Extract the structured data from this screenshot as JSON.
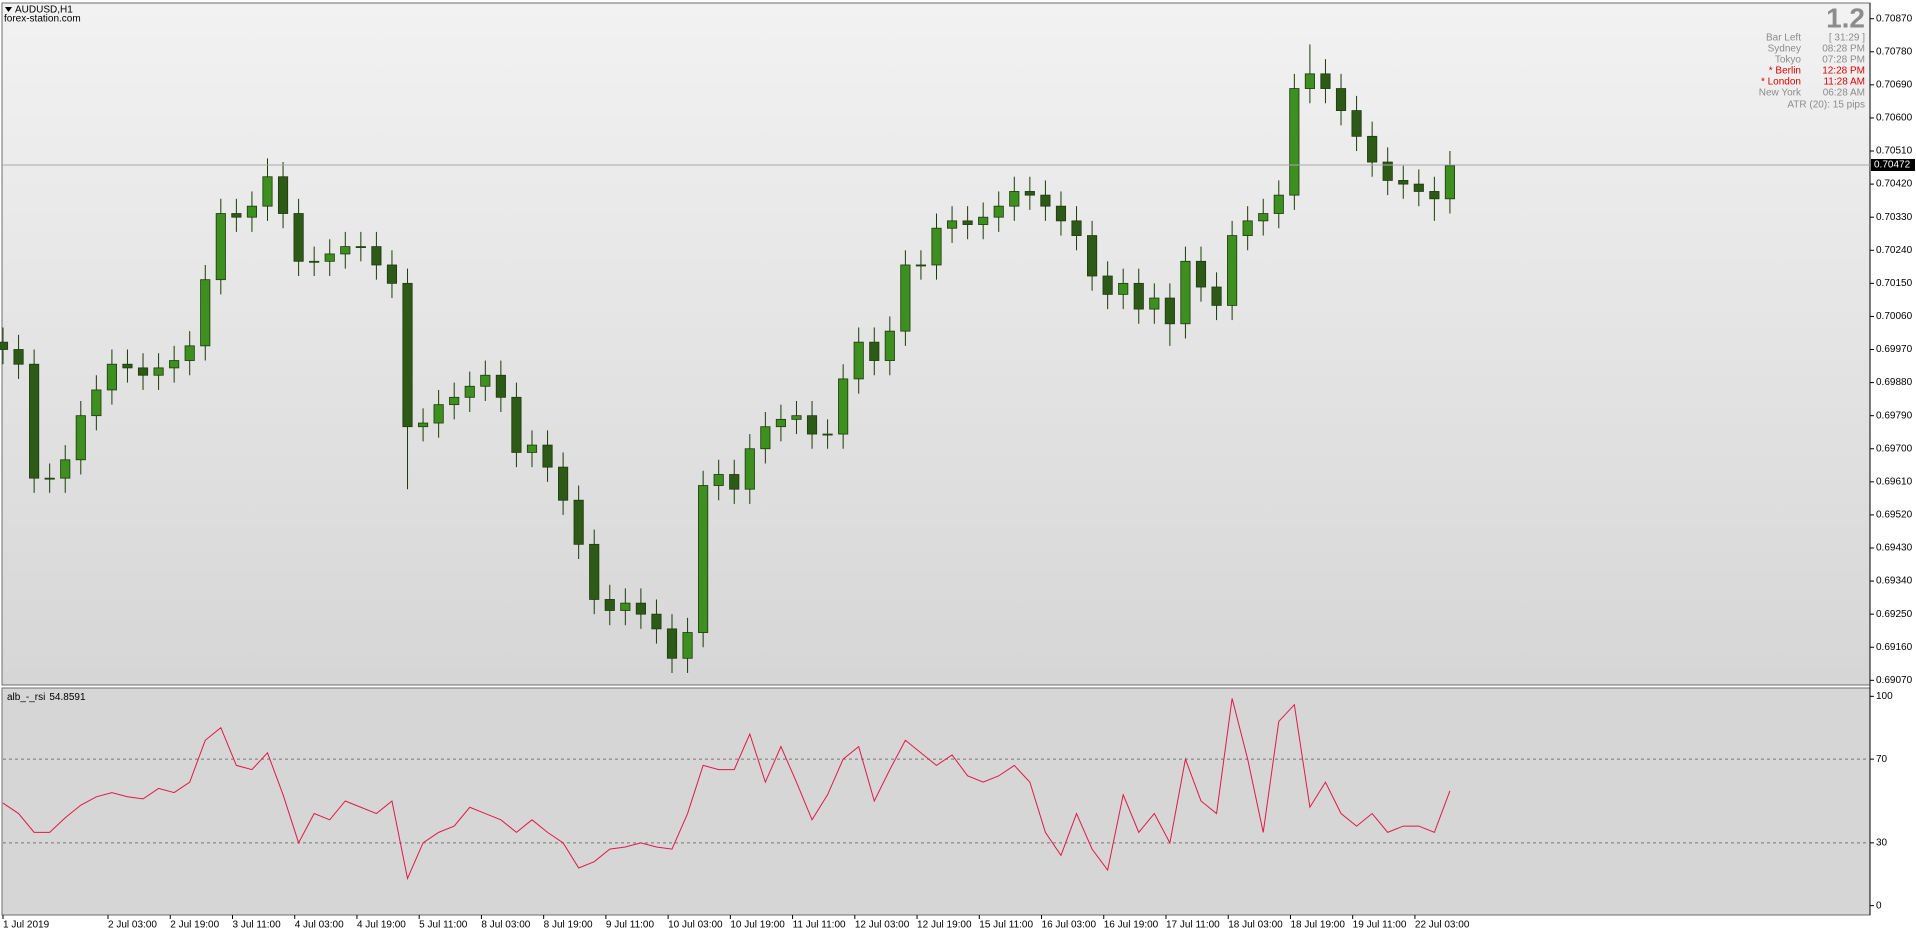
{
  "header": {
    "symbol": "AUDUSD,H1",
    "source": "forex-station.com"
  },
  "info_panel": {
    "big": "1.2",
    "rows": [
      {
        "label": "Bar Left",
        "value": "[ 31:29 ]",
        "color": "#8c8c8c"
      },
      {
        "label": "Sydney",
        "value": "08:28 PM",
        "color": "#8c8c8c"
      },
      {
        "label": "Tokyo",
        "value": "07:28 PM",
        "color": "#8c8c8c"
      },
      {
        "label": "* Berlin",
        "value": "12:28 PM",
        "color": "#e00000"
      },
      {
        "label": "* London",
        "value": "11:28 AM",
        "color": "#e00000"
      },
      {
        "label": "New York",
        "value": "06:28 AM",
        "color": "#8c8c8c"
      }
    ],
    "atr": "ATR (20): 15 pips"
  },
  "chart_data": [
    {
      "type": "candlestick",
      "up_color": "#3d8f1f",
      "down_color": "#2e5a17",
      "outline_color": "#1d3a0c",
      "current_price": 0.70472,
      "xlim": [
        0,
        480
      ],
      "ylim": [
        0.6906,
        0.7091
      ],
      "yticks": [
        {
          "value": 0.7087,
          "label": "0.70870"
        },
        {
          "value": 0.7078,
          "label": "0.70780"
        },
        {
          "value": 0.7069,
          "label": "0.70690"
        },
        {
          "value": 0.706,
          "label": "0.70600"
        },
        {
          "value": 0.7051,
          "label": "0.70510"
        },
        {
          "value": 0.7042,
          "label": "0.70420"
        },
        {
          "value": 0.7033,
          "label": "0.70330"
        },
        {
          "value": 0.7024,
          "label": "0.70240"
        },
        {
          "value": 0.7015,
          "label": "0.70150"
        },
        {
          "value": 0.7006,
          "label": "0.70060"
        },
        {
          "value": 0.6997,
          "label": "0.69970"
        },
        {
          "value": 0.6988,
          "label": "0.69880"
        },
        {
          "value": 0.6979,
          "label": "0.69790"
        },
        {
          "value": 0.697,
          "label": "0.69700"
        },
        {
          "value": 0.6961,
          "label": "0.69610"
        },
        {
          "value": 0.6952,
          "label": "0.69520"
        },
        {
          "value": 0.6943,
          "label": "0.69430"
        },
        {
          "value": 0.6934,
          "label": "0.69340"
        },
        {
          "value": 0.6925,
          "label": "0.69250"
        },
        {
          "value": 0.6916,
          "label": "0.69160"
        },
        {
          "value": 0.6907,
          "label": "0.69070"
        }
      ],
      "x": [
        0,
        4,
        8,
        12,
        16,
        20,
        24,
        28,
        32,
        36,
        40,
        44,
        48,
        52,
        56,
        60,
        64,
        68,
        72,
        76,
        80,
        84,
        88,
        92,
        96,
        100,
        104,
        108,
        112,
        116,
        120,
        124,
        128,
        132,
        136,
        140,
        144,
        148,
        152,
        156,
        160,
        164,
        168,
        172,
        176,
        180,
        184,
        188,
        192,
        196,
        200,
        204,
        208,
        212,
        216,
        220,
        224,
        228,
        232,
        236,
        240,
        244,
        248,
        252,
        256,
        260,
        264,
        268,
        272,
        276,
        280,
        284,
        288,
        292,
        296,
        300,
        304,
        308,
        312,
        316,
        320,
        324,
        328,
        332,
        336,
        340,
        344,
        348,
        352,
        356,
        360,
        364,
        368,
        372
      ],
      "open": [
        0.6999,
        0.6997,
        0.6993,
        0.6962,
        0.6962,
        0.6967,
        0.6979,
        0.6986,
        0.6993,
        0.6992,
        0.699,
        0.6992,
        0.6994,
        0.6998,
        0.7016,
        0.7034,
        0.7033,
        0.7036,
        0.7044,
        0.7034,
        0.7021,
        0.7021,
        0.7023,
        0.7025,
        0.7025,
        0.702,
        0.7015,
        0.6976,
        0.6977,
        0.6982,
        0.6984,
        0.6987,
        0.699,
        0.6984,
        0.6969,
        0.6971,
        0.6965,
        0.6956,
        0.6944,
        0.6929,
        0.6926,
        0.6928,
        0.6925,
        0.6921,
        0.6913,
        0.692,
        0.696,
        0.6963,
        0.6959,
        0.697,
        0.6976,
        0.6978,
        0.6979,
        0.6974,
        0.6974,
        0.6989,
        0.6999,
        0.6994,
        0.7002,
        0.702,
        0.702,
        0.703,
        0.7032,
        0.7031,
        0.7033,
        0.7036,
        0.704,
        0.7039,
        0.7036,
        0.7032,
        0.7028,
        0.7017,
        0.7012,
        0.7015,
        0.7008,
        0.7011,
        0.7004,
        0.7021,
        0.7014,
        0.7009,
        0.7028,
        0.7032,
        0.7034,
        0.7039,
        0.7068,
        0.7072,
        0.7068,
        0.7062,
        0.7055,
        0.7048,
        0.7043,
        0.7042,
        0.704,
        0.7038
      ],
      "high": [
        0.7003,
        0.7001,
        0.6997,
        0.6966,
        0.6971,
        0.6983,
        0.699,
        0.6997,
        0.6997,
        0.6996,
        0.6996,
        0.6998,
        0.7002,
        0.702,
        0.7038,
        0.7038,
        0.704,
        0.7049,
        0.7048,
        0.7038,
        0.7025,
        0.7027,
        0.7029,
        0.7029,
        0.7029,
        0.7024,
        0.7019,
        0.6981,
        0.6986,
        0.6988,
        0.6991,
        0.6994,
        0.6994,
        0.6988,
        0.6975,
        0.6975,
        0.6969,
        0.696,
        0.6948,
        0.6933,
        0.6932,
        0.6932,
        0.6929,
        0.6925,
        0.6924,
        0.6964,
        0.6967,
        0.6967,
        0.6974,
        0.698,
        0.6982,
        0.6983,
        0.6983,
        0.6978,
        0.6993,
        0.7003,
        0.7003,
        0.7006,
        0.7024,
        0.7024,
        0.7034,
        0.7036,
        0.7036,
        0.7037,
        0.704,
        0.7044,
        0.7044,
        0.7043,
        0.704,
        0.7036,
        0.7032,
        0.7021,
        0.7019,
        0.7019,
        0.7015,
        0.7015,
        0.7025,
        0.7025,
        0.7018,
        0.7032,
        0.7036,
        0.7038,
        0.7043,
        0.7072,
        0.708,
        0.7076,
        0.7072,
        0.7066,
        0.7059,
        0.7052,
        0.7047,
        0.7046,
        0.7044,
        0.7051
      ],
      "low": [
        0.6993,
        0.6989,
        0.6958,
        0.6958,
        0.6958,
        0.6963,
        0.6975,
        0.6982,
        0.6988,
        0.6986,
        0.6986,
        0.6988,
        0.699,
        0.6994,
        0.7012,
        0.7029,
        0.7029,
        0.7032,
        0.703,
        0.7017,
        0.7017,
        0.7017,
        0.7019,
        0.7021,
        0.7016,
        0.7011,
        0.6959,
        0.6972,
        0.6973,
        0.6978,
        0.698,
        0.6983,
        0.698,
        0.6965,
        0.6965,
        0.6961,
        0.6952,
        0.694,
        0.6925,
        0.6922,
        0.6922,
        0.6921,
        0.6917,
        0.6909,
        0.6909,
        0.6916,
        0.6956,
        0.6955,
        0.6955,
        0.6966,
        0.6972,
        0.6974,
        0.697,
        0.697,
        0.697,
        0.6985,
        0.699,
        0.699,
        0.6998,
        0.7016,
        0.7016,
        0.7026,
        0.7027,
        0.7027,
        0.7029,
        0.7032,
        0.7035,
        0.7032,
        0.7028,
        0.7024,
        0.7013,
        0.7008,
        0.7008,
        0.7004,
        0.7004,
        0.6998,
        0.7,
        0.701,
        0.7005,
        0.7005,
        0.7024,
        0.7028,
        0.703,
        0.7035,
        0.7064,
        0.7064,
        0.7058,
        0.7051,
        0.7044,
        0.7039,
        0.7038,
        0.7036,
        0.7032,
        0.7034
      ],
      "close": [
        0.6997,
        0.6993,
        0.6962,
        0.6962,
        0.6967,
        0.6979,
        0.6986,
        0.6993,
        0.6992,
        0.699,
        0.6992,
        0.6994,
        0.6998,
        0.7016,
        0.7034,
        0.7033,
        0.7036,
        0.7044,
        0.7034,
        0.7021,
        0.7021,
        0.7023,
        0.7025,
        0.7025,
        0.702,
        0.7015,
        0.6976,
        0.6977,
        0.6982,
        0.6984,
        0.6987,
        0.699,
        0.6984,
        0.6969,
        0.6971,
        0.6965,
        0.6956,
        0.6944,
        0.6929,
        0.6926,
        0.6928,
        0.6925,
        0.6921,
        0.6913,
        0.692,
        0.696,
        0.6963,
        0.6959,
        0.697,
        0.6976,
        0.6978,
        0.6979,
        0.6974,
        0.6974,
        0.6989,
        0.6999,
        0.6994,
        0.7002,
        0.702,
        0.702,
        0.703,
        0.7032,
        0.7031,
        0.7033,
        0.7036,
        0.704,
        0.7039,
        0.7036,
        0.7032,
        0.7028,
        0.7017,
        0.7012,
        0.7015,
        0.7008,
        0.7011,
        0.7004,
        0.7021,
        0.7014,
        0.7009,
        0.7028,
        0.7032,
        0.7034,
        0.7039,
        0.7068,
        0.7072,
        0.7068,
        0.7062,
        0.7055,
        0.7048,
        0.7043,
        0.7042,
        0.704,
        0.7038,
        0.7047
      ]
    },
    {
      "type": "line",
      "xlim": [
        0,
        480
      ],
      "ylim": [
        -4,
        103.5
      ],
      "yticks": [
        100,
        70,
        30,
        0
      ],
      "levels": [
        70,
        30
      ],
      "xticks": [
        {
          "value": 0,
          "label": "1 Jul 2019"
        },
        {
          "value": 27,
          "label": "2 Jul 03:00"
        },
        {
          "value": 43,
          "label": "2 Jul 19:00"
        },
        {
          "value": 59,
          "label": "3 Jul 11:00"
        },
        {
          "value": 75,
          "label": "4 Jul 03:00"
        },
        {
          "value": 91,
          "label": "4 Jul 19:00"
        },
        {
          "value": 107,
          "label": "5 Jul 11:00"
        },
        {
          "value": 123,
          "label": "8 Jul 03:00"
        },
        {
          "value": 139,
          "label": "8 Jul 19:00"
        },
        {
          "value": 155,
          "label": "9 Jul 11:00"
        },
        {
          "value": 171,
          "label": "10 Jul 03:00"
        },
        {
          "value": 187,
          "label": "10 Jul 19:00"
        },
        {
          "value": 203,
          "label": "11 Jul 11:00"
        },
        {
          "value": 219,
          "label": "12 Jul 03:00"
        },
        {
          "value": 235,
          "label": "12 Jul 19:00"
        },
        {
          "value": 251,
          "label": "15 Jul 11:00"
        },
        {
          "value": 267,
          "label": "16 Jul 03:00"
        },
        {
          "value": 283,
          "label": "16 Jul 19:00"
        },
        {
          "value": 299,
          "label": "17 Jul 11:00"
        },
        {
          "value": 315,
          "label": "18 Jul 03:00"
        },
        {
          "value": 331,
          "label": "18 Jul 19:00"
        },
        {
          "value": 347,
          "label": "19 Jul 11:00"
        },
        {
          "value": 363,
          "label": "22 Jul 03:00"
        }
      ],
      "x": [
        0,
        4,
        8,
        12,
        16,
        20,
        24,
        28,
        32,
        36,
        40,
        44,
        48,
        52,
        56,
        60,
        64,
        68,
        72,
        76,
        80,
        84,
        88,
        92,
        96,
        100,
        104,
        108,
        112,
        116,
        120,
        124,
        128,
        132,
        136,
        140,
        144,
        148,
        152,
        156,
        160,
        164,
        168,
        172,
        176,
        180,
        184,
        188,
        192,
        196,
        200,
        204,
        208,
        212,
        216,
        220,
        224,
        228,
        232,
        236,
        240,
        244,
        248,
        252,
        256,
        260,
        264,
        268,
        272,
        276,
        280,
        284,
        288,
        292,
        296,
        300,
        304,
        308,
        312,
        316,
        320,
        324,
        328,
        332,
        336,
        340,
        344,
        348,
        352,
        356,
        360,
        364,
        368,
        372
      ],
      "series": [
        {
          "name": "alb_-_rsi",
          "color": "#e0194a",
          "values": [
            49,
            44,
            35,
            35,
            42,
            48,
            52,
            54,
            52,
            51,
            56,
            54,
            59,
            79,
            85,
            67,
            65,
            73,
            53,
            30,
            44,
            41,
            50,
            47,
            44,
            50,
            13,
            30,
            35,
            38,
            47,
            44,
            41,
            35,
            41,
            35,
            30,
            18,
            21,
            27,
            28,
            30,
            28,
            27,
            44,
            67,
            65,
            65,
            82,
            59,
            76,
            59,
            41,
            53,
            70,
            76,
            50,
            65,
            79,
            73,
            67,
            72,
            62,
            59,
            62,
            67,
            59,
            35,
            24,
            44,
            27,
            17,
            53,
            35,
            44,
            30,
            70,
            50,
            44,
            99,
            70,
            35,
            88,
            96,
            47,
            59,
            44,
            38,
            44,
            35,
            38,
            38,
            35,
            54.8591
          ]
        }
      ]
    }
  ]
}
